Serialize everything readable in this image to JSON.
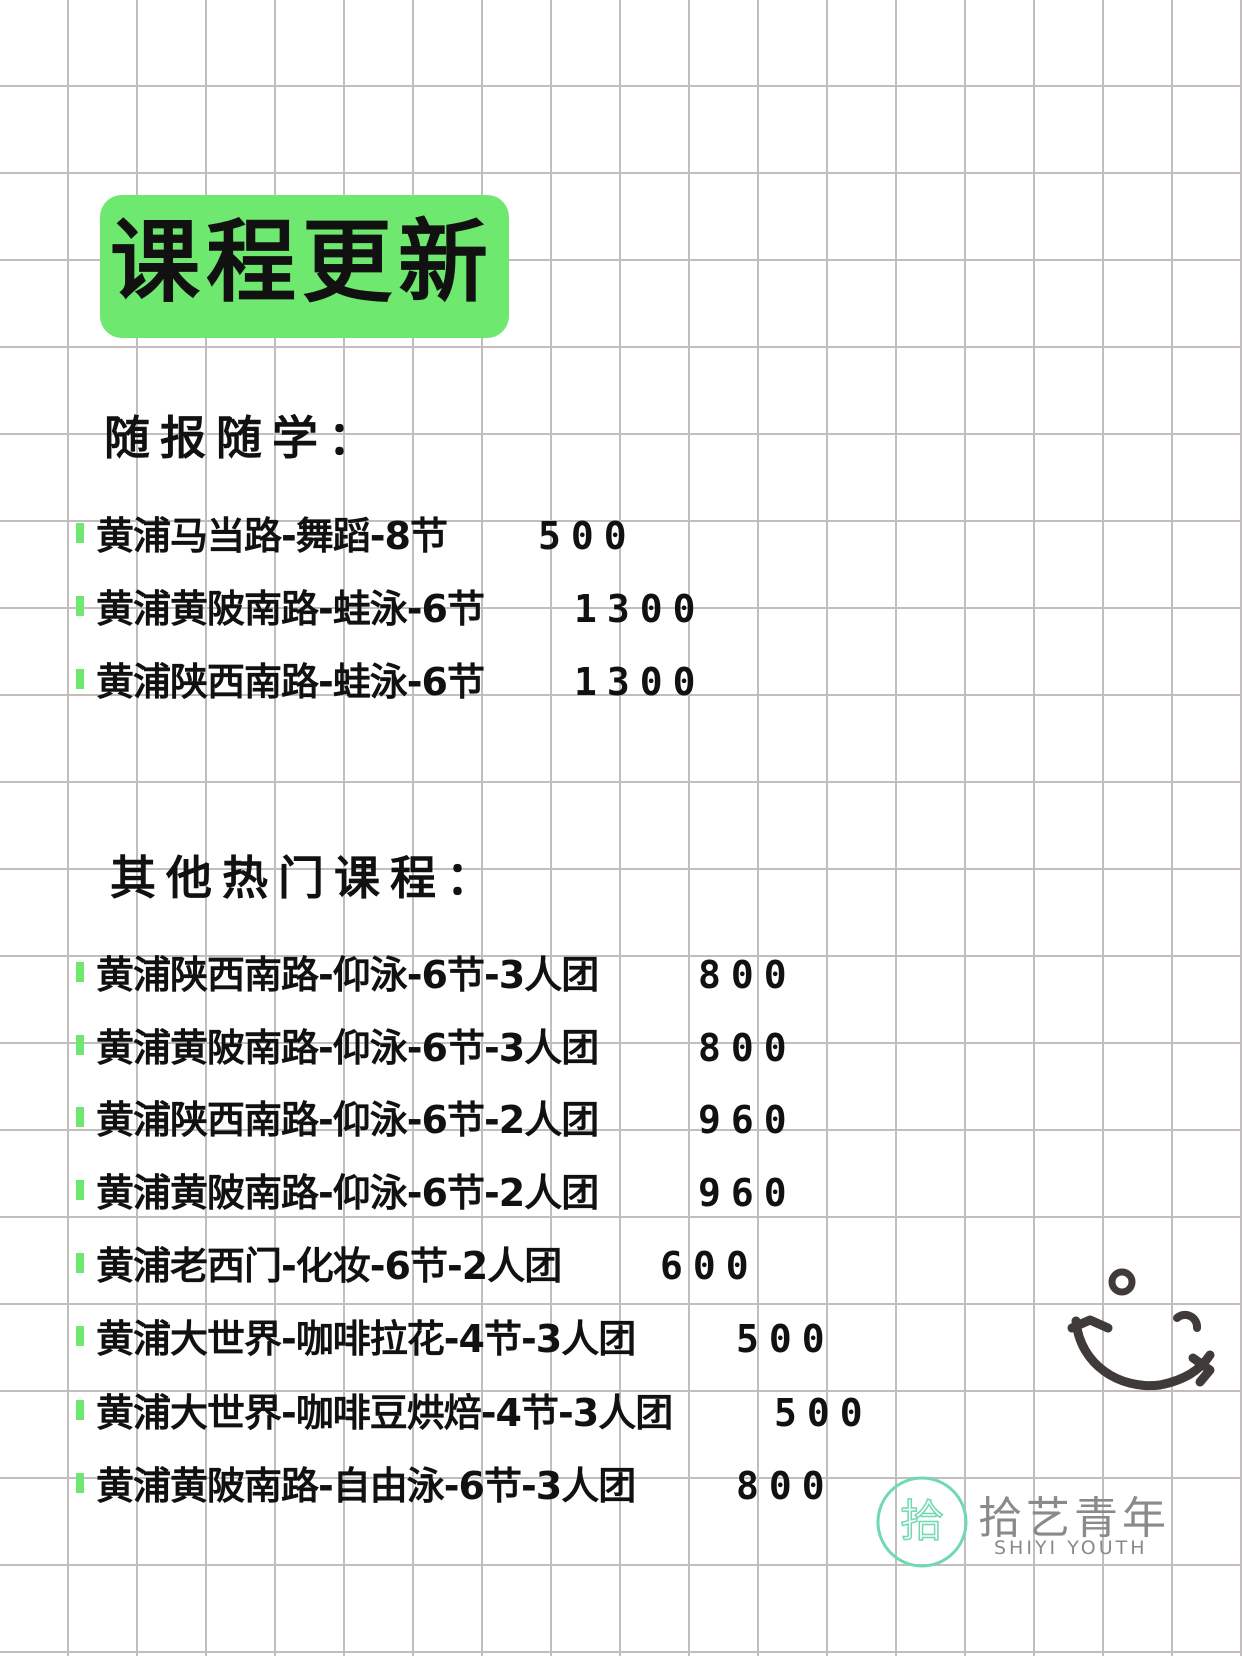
{
  "title": "课程更新",
  "section1": {
    "heading": "随报随学：",
    "items": [
      {
        "name": "黄浦马当路-舞蹈-8节",
        "price": "500"
      },
      {
        "name": "黄浦黄陂南路-蛙泳-6节",
        "price": "1300"
      },
      {
        "name": "黄浦陕西南路-蛙泳-6节",
        "price": "1300"
      }
    ]
  },
  "section2": {
    "heading": "其他热门课程：",
    "items": [
      {
        "name": "黄浦陕西南路-仰泳-6节-3人团",
        "price": "800"
      },
      {
        "name": "黄浦黄陂南路-仰泳-6节-3人团",
        "price": "800"
      },
      {
        "name": "黄浦陕西南路-仰泳-6节-2人团",
        "price": "960"
      },
      {
        "name": "黄浦黄陂南路-仰泳-6节-2人团",
        "price": "960"
      },
      {
        "name": "黄浦老西门-化妆-6节-2人团",
        "price": "600"
      },
      {
        "name": "黄浦大世界-咖啡拉花-4节-3人团",
        "price": "500"
      },
      {
        "name": "黄浦大世界-咖啡豆烘焙-4节-3人团",
        "price": "500"
      },
      {
        "name": "黄浦黄陂南路-自由泳-6节-3人团",
        "price": "800"
      }
    ]
  },
  "brand": {
    "logo_text": "拾艺",
    "name_cn": "拾艺青年",
    "name_en": "SHIYI YOUTH"
  },
  "colors": {
    "accent": "#6ee86f",
    "grid": "#c2bebe",
    "logo": "#6fd9b0"
  }
}
